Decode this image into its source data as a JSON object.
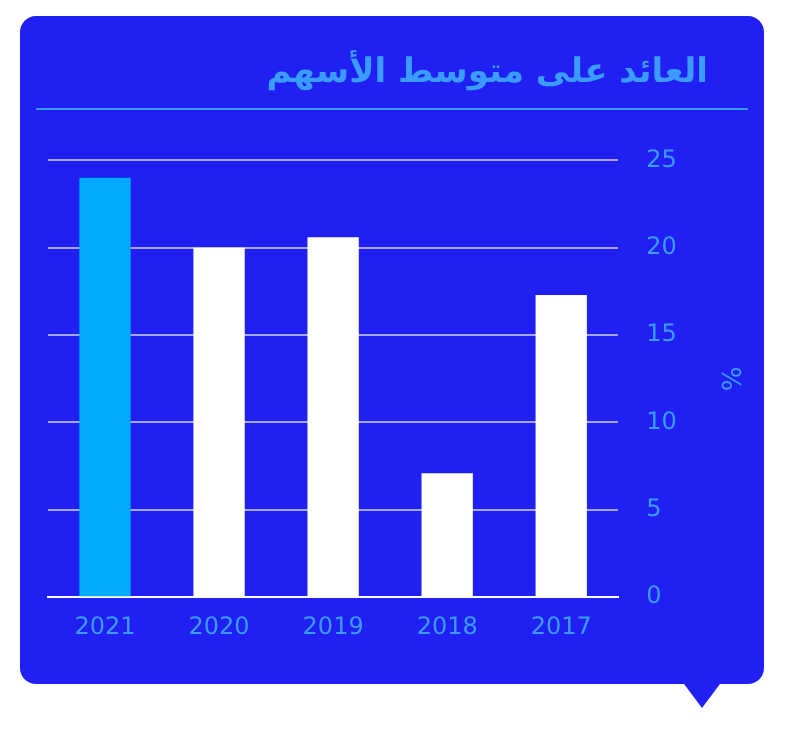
{
  "chart_data": {
    "type": "bar",
    "title": "العائد على متوسط الأسهم",
    "ylabel": "%",
    "categories": [
      "2021",
      "2020",
      "2019",
      "2018",
      "2017"
    ],
    "values": [
      24,
      20,
      20.6,
      7.1,
      17.3
    ],
    "colors": [
      "#00aaff",
      "#ffffff",
      "#ffffff",
      "#ffffff",
      "#ffffff"
    ],
    "ylim": [
      0,
      25
    ],
    "yticks": [
      0,
      5,
      10,
      15,
      20,
      25
    ],
    "grid": "y"
  }
}
